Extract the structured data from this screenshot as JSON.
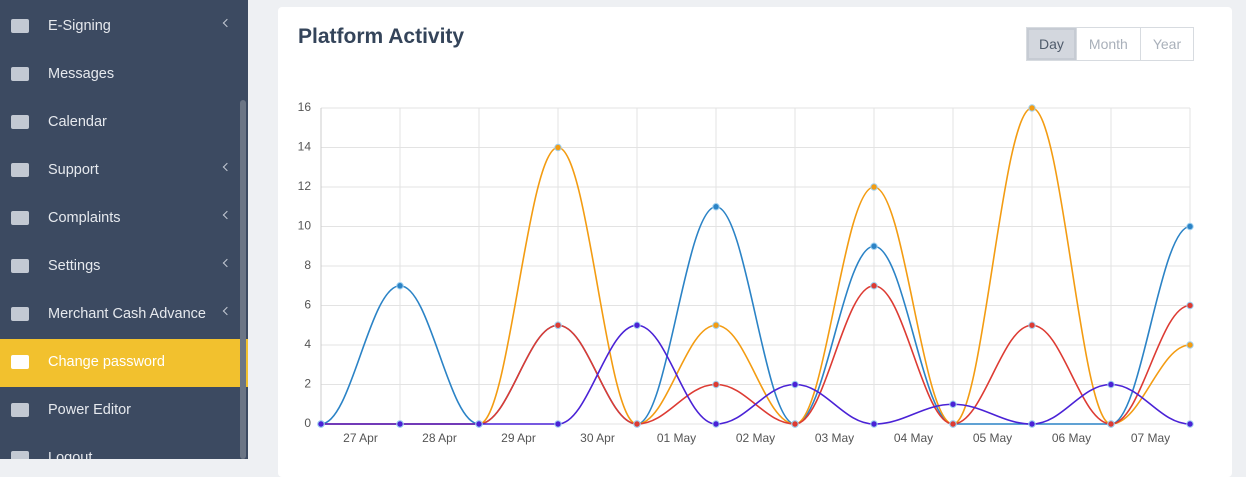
{
  "sidebar": {
    "items": [
      {
        "label": "E-Signing",
        "submenu": true
      },
      {
        "label": "Messages",
        "submenu": false
      },
      {
        "label": "Calendar",
        "submenu": false
      },
      {
        "label": "Support",
        "submenu": true
      },
      {
        "label": "Complaints",
        "submenu": true
      },
      {
        "label": "Settings",
        "submenu": true
      },
      {
        "label": "Merchant Cash Advance",
        "submenu": true
      },
      {
        "label": "Change password",
        "submenu": false,
        "active": true
      },
      {
        "label": "Power Editor",
        "submenu": false
      },
      {
        "label": "Logout",
        "submenu": false
      }
    ]
  },
  "card": {
    "title": "Platform Activity",
    "range_buttons": [
      {
        "label": "Day",
        "selected": true
      },
      {
        "label": "Month",
        "selected": false
      },
      {
        "label": "Year",
        "selected": false
      }
    ]
  },
  "chart_data": {
    "type": "line",
    "smooth": true,
    "grid": true,
    "x": [
      0,
      1,
      2,
      3,
      4,
      5,
      6,
      7,
      8,
      9,
      10,
      11
    ],
    "xlim": [
      0,
      11
    ],
    "xticks": [
      {
        "value": 0.5,
        "label": "27 Apr"
      },
      {
        "value": 1.5,
        "label": "28 Apr"
      },
      {
        "value": 2.5,
        "label": "29 Apr"
      },
      {
        "value": 3.5,
        "label": "30 Apr"
      },
      {
        "value": 4.5,
        "label": "01 May"
      },
      {
        "value": 5.5,
        "label": "02 May"
      },
      {
        "value": 6.5,
        "label": "03 May"
      },
      {
        "value": 7.5,
        "label": "04 May"
      },
      {
        "value": 8.5,
        "label": "05 May"
      },
      {
        "value": 9.5,
        "label": "06 May"
      },
      {
        "value": 10.5,
        "label": "07 May"
      }
    ],
    "ylim": [
      0,
      16
    ],
    "yticks": [
      0,
      2,
      4,
      6,
      8,
      10,
      12,
      14,
      16
    ],
    "series": [
      {
        "color": "#2b83c6",
        "values": [
          0,
          7,
          0,
          5,
          0,
          11,
          0,
          9,
          0,
          0,
          0,
          10
        ]
      },
      {
        "color": "#f39c12",
        "values": [
          0,
          0,
          0,
          14,
          0,
          5,
          0,
          12,
          0,
          16,
          0,
          4
        ]
      },
      {
        "color": "#dd3b33",
        "values": [
          0,
          0,
          0,
          5,
          0,
          2,
          0,
          7,
          0,
          5,
          0,
          6
        ]
      },
      {
        "color": "#4a22d6",
        "values": [
          0,
          0,
          0,
          0,
          5,
          0,
          2,
          0,
          1,
          0,
          2,
          0
        ]
      }
    ]
  }
}
